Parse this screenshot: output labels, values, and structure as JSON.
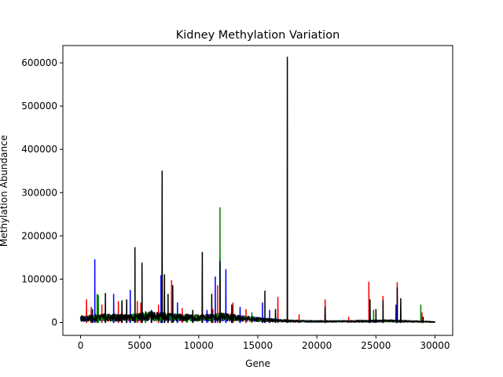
{
  "chart_data": {
    "type": "line",
    "title": "Kidney Methylation Variation",
    "xlabel": "Gene",
    "ylabel": "Methylation Abundance",
    "xlim": [
      -1500,
      31500
    ],
    "ylim": [
      -30000,
      640000
    ],
    "x_ticks": [
      0,
      5000,
      10000,
      15000,
      20000,
      25000,
      30000
    ],
    "x_tick_labels": [
      "0",
      "5000",
      "10000",
      "15000",
      "20000",
      "25000",
      "30000"
    ],
    "y_ticks": [
      0,
      100000,
      200000,
      300000,
      400000,
      500000,
      600000
    ],
    "y_tick_labels": [
      "0",
      "100000",
      "200000",
      "300000",
      "400000",
      "500000",
      "600000"
    ],
    "grid": false,
    "baseline": {
      "x_range": [
        0,
        30000
      ],
      "levels": [
        [
          0,
          15000
        ],
        [
          2000,
          20000
        ],
        [
          4000,
          18000
        ],
        [
          6000,
          25000
        ],
        [
          8000,
          20000
        ],
        [
          10000,
          18000
        ],
        [
          12000,
          22000
        ],
        [
          14000,
          15000
        ],
        [
          16000,
          9000
        ],
        [
          18000,
          5000
        ],
        [
          20000,
          4000
        ],
        [
          22000,
          4000
        ],
        [
          24000,
          5000
        ],
        [
          26000,
          6000
        ],
        [
          28000,
          4000
        ],
        [
          30000,
          2000
        ]
      ]
    },
    "series": [
      {
        "color": "#ff0000",
        "peaks": [
          [
            500,
            52000
          ],
          [
            900,
            35000
          ],
          [
            1800,
            40000
          ],
          [
            3200,
            48000
          ],
          [
            4800,
            48000
          ],
          [
            5100,
            45000
          ],
          [
            6600,
            40000
          ],
          [
            7700,
            97000
          ],
          [
            8600,
            32000
          ],
          [
            11200,
            30000
          ],
          [
            11600,
            85000
          ],
          [
            12900,
            45000
          ],
          [
            14000,
            30000
          ],
          [
            16700,
            58000
          ],
          [
            18500,
            18000
          ],
          [
            20700,
            52000
          ],
          [
            22700,
            12000
          ],
          [
            24400,
            93000
          ],
          [
            25600,
            60000
          ],
          [
            26800,
            92000
          ],
          [
            28900,
            22000
          ]
        ]
      },
      {
        "color": "#0000ff",
        "peaks": [
          [
            1200,
            145000
          ],
          [
            2800,
            65000
          ],
          [
            4200,
            74000
          ],
          [
            6800,
            108000
          ],
          [
            8200,
            45000
          ],
          [
            10700,
            28000
          ],
          [
            11400,
            105000
          ],
          [
            11800,
            150000
          ],
          [
            12300,
            122000
          ],
          [
            13500,
            35000
          ],
          [
            15400,
            45000
          ],
          [
            16000,
            28000
          ],
          [
            24500,
            30000
          ],
          [
            26700,
            40000
          ]
        ]
      },
      {
        "color": "#008000",
        "peaks": [
          [
            1400,
            65000
          ],
          [
            1500,
            62000
          ],
          [
            5500,
            25000
          ],
          [
            9000,
            20000
          ],
          [
            11800,
            265000
          ],
          [
            14500,
            22000
          ],
          [
            24800,
            28000
          ],
          [
            28800,
            40000
          ]
        ]
      },
      {
        "color": "#000000",
        "peaks": [
          [
            1000,
            30000
          ],
          [
            2100,
            67000
          ],
          [
            3500,
            50000
          ],
          [
            3900,
            52000
          ],
          [
            4600,
            173000
          ],
          [
            5200,
            137000
          ],
          [
            6000,
            28000
          ],
          [
            6900,
            350000
          ],
          [
            7100,
            110000
          ],
          [
            7400,
            65000
          ],
          [
            7800,
            85000
          ],
          [
            9500,
            28000
          ],
          [
            10300,
            162000
          ],
          [
            11100,
            65000
          ],
          [
            11800,
            140000
          ],
          [
            12800,
            40000
          ],
          [
            15600,
            72000
          ],
          [
            16500,
            30000
          ],
          [
            17500,
            613000
          ],
          [
            20700,
            35000
          ],
          [
            24500,
            52000
          ],
          [
            25000,
            30000
          ],
          [
            25600,
            50000
          ],
          [
            26800,
            80000
          ],
          [
            27100,
            55000
          ],
          [
            29000,
            12000
          ]
        ]
      }
    ]
  }
}
